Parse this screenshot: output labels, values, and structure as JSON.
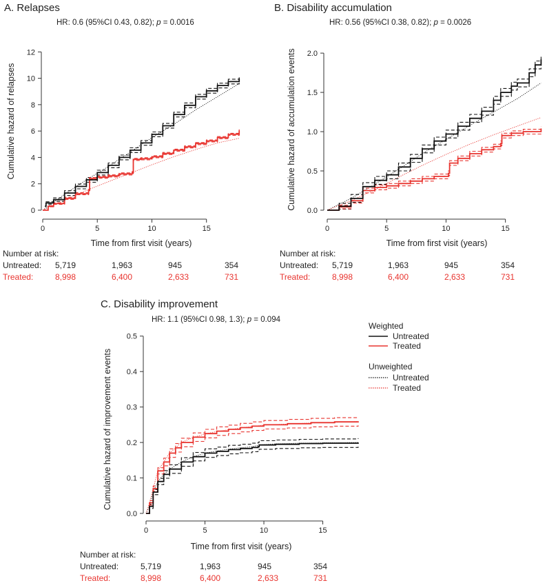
{
  "colors": {
    "untreated": "#111111",
    "treated": "#e8332e"
  },
  "risk_table": {
    "heading": "Number at risk:",
    "untreated_label": "Untreated:",
    "treated_label": "Treated:",
    "times": [
      0,
      5,
      10,
      15
    ],
    "untreated": [
      "5,719",
      "1,963",
      "945",
      "354"
    ],
    "treated": [
      "8,998",
      "6,400",
      "2,633",
      "731"
    ]
  },
  "legend": {
    "weighted_heading": "Weighted",
    "unweighted_heading": "Unweighted",
    "untreated": "Untreated",
    "treated": "Treated"
  },
  "chart_data": [
    {
      "id": "A",
      "type": "line",
      "title": "A. Relapses",
      "hr_prefix": "HR: 0.6 (95%CI 0.43, 0.82); ",
      "hr_p_label": "p",
      "hr_p_value": " = 0.0016",
      "xlabel": "Time from first visit (years)",
      "ylabel": "Cumulative hazard of relapses",
      "xlim": [
        0,
        18.3
      ],
      "ylim": [
        0,
        12.8
      ],
      "xticks": [
        0,
        5,
        10,
        15
      ],
      "yticks": [
        0,
        2,
        4,
        6,
        8,
        10,
        12
      ],
      "ytick_labels": [
        "0",
        "2",
        "4",
        "6",
        "8",
        "10",
        "12"
      ],
      "weighted_untreated": [
        [
          0.2,
          0.3
        ],
        [
          0.3,
          0.55
        ],
        [
          1,
          0.8
        ],
        [
          2,
          1.3
        ],
        [
          3,
          1.8
        ],
        [
          4,
          2.3
        ],
        [
          5,
          2.85
        ],
        [
          6,
          3.4
        ],
        [
          7,
          4.0
        ],
        [
          8,
          4.55
        ],
        [
          9,
          5.1
        ],
        [
          10,
          5.75
        ],
        [
          11,
          6.4
        ],
        [
          12,
          7.25
        ],
        [
          13,
          7.95
        ],
        [
          14,
          8.6
        ],
        [
          15,
          9.05
        ],
        [
          16,
          9.45
        ],
        [
          17,
          9.75
        ],
        [
          18,
          10.0
        ]
      ],
      "weighted_untreated_ci_band": 0.18,
      "weighted_treated": [
        [
          0,
          0
        ],
        [
          0.5,
          0.3
        ],
        [
          1,
          0.5
        ],
        [
          2,
          0.9
        ],
        [
          3,
          1.25
        ],
        [
          4.2,
          1.5
        ],
        [
          4.3,
          2.4
        ],
        [
          5,
          2.5
        ],
        [
          6,
          2.6
        ],
        [
          7,
          2.75
        ],
        [
          8.2,
          2.85
        ],
        [
          8.3,
          3.85
        ],
        [
          9,
          3.9
        ],
        [
          10,
          4.05
        ],
        [
          11,
          4.3
        ],
        [
          12,
          4.55
        ],
        [
          13,
          4.8
        ],
        [
          14,
          5.05
        ],
        [
          15,
          5.25
        ],
        [
          16,
          5.5
        ],
        [
          17,
          5.75
        ],
        [
          18,
          6.05
        ]
      ],
      "weighted_treated_ci_band": 0.08,
      "unweighted_untreated": [
        [
          0,
          0
        ],
        [
          2,
          1.2
        ],
        [
          4,
          2.3
        ],
        [
          6,
          3.3
        ],
        [
          8,
          4.4
        ],
        [
          10,
          5.5
        ],
        [
          12,
          6.5
        ],
        [
          14,
          7.6
        ],
        [
          16,
          8.6
        ],
        [
          18,
          9.6
        ]
      ],
      "unweighted_treated": [
        [
          0,
          0
        ],
        [
          2,
          0.75
        ],
        [
          4,
          1.5
        ],
        [
          6,
          2.15
        ],
        [
          8,
          2.8
        ],
        [
          10,
          3.45
        ],
        [
          12,
          4.05
        ],
        [
          14,
          4.6
        ],
        [
          16,
          5.1
        ],
        [
          18,
          5.45
        ]
      ]
    },
    {
      "id": "B",
      "type": "line",
      "title": "B. Disability accumulation",
      "hr_prefix": "HR: 0.56 (95%CI 0.38, 0.82); ",
      "hr_p_label": "p",
      "hr_p_value": " = 0.0026",
      "xlabel": "Time from first visit (years)",
      "ylabel": "Cumulative hazard of accumulation events",
      "xlim": [
        0,
        18.5
      ],
      "ylim": [
        0,
        2.15
      ],
      "xticks": [
        0,
        5,
        10,
        15
      ],
      "yticks": [
        0,
        0.5,
        1.0,
        1.5,
        2.0
      ],
      "ytick_labels": [
        "0.0",
        "0.5",
        "1.0",
        "1.5",
        "2.0"
      ],
      "weighted_untreated": [
        [
          0,
          0
        ],
        [
          1,
          0.05
        ],
        [
          2,
          0.15
        ],
        [
          3,
          0.3
        ],
        [
          4,
          0.38
        ],
        [
          5,
          0.45
        ],
        [
          6,
          0.55
        ],
        [
          7,
          0.66
        ],
        [
          8,
          0.78
        ],
        [
          9,
          0.88
        ],
        [
          10,
          0.97
        ],
        [
          11,
          1.07
        ],
        [
          12,
          1.17
        ],
        [
          13,
          1.26
        ],
        [
          14,
          1.4
        ],
        [
          14.6,
          1.5
        ],
        [
          15.5,
          1.58
        ],
        [
          16,
          1.62
        ],
        [
          17,
          1.75
        ],
        [
          17.5,
          1.85
        ],
        [
          18,
          1.92
        ]
      ],
      "weighted_untreated_ci_band": 0.05,
      "weighted_treated": [
        [
          0,
          0
        ],
        [
          1,
          0.04
        ],
        [
          2,
          0.12
        ],
        [
          3,
          0.25
        ],
        [
          4,
          0.29
        ],
        [
          5,
          0.31
        ],
        [
          6,
          0.34
        ],
        [
          7,
          0.37
        ],
        [
          8,
          0.4
        ],
        [
          9,
          0.43
        ],
        [
          10.2,
          0.47
        ],
        [
          10.3,
          0.6
        ],
        [
          11,
          0.66
        ],
        [
          12,
          0.72
        ],
        [
          13,
          0.77
        ],
        [
          14,
          0.81
        ],
        [
          14.6,
          0.85
        ],
        [
          14.7,
          0.95
        ],
        [
          15.5,
          0.98
        ],
        [
          16.5,
          1.0
        ],
        [
          18,
          1.04
        ]
      ],
      "weighted_treated_ci_band": 0.03,
      "unweighted_untreated": [
        [
          0,
          0
        ],
        [
          2,
          0.15
        ],
        [
          4,
          0.33
        ],
        [
          6,
          0.52
        ],
        [
          8,
          0.72
        ],
        [
          10,
          0.9
        ],
        [
          12,
          1.08
        ],
        [
          14,
          1.25
        ],
        [
          16,
          1.42
        ],
        [
          18,
          1.62
        ]
      ],
      "unweighted_treated": [
        [
          0,
          0
        ],
        [
          2,
          0.12
        ],
        [
          4,
          0.26
        ],
        [
          6,
          0.42
        ],
        [
          8,
          0.57
        ],
        [
          10,
          0.71
        ],
        [
          12,
          0.84
        ],
        [
          14,
          0.96
        ],
        [
          16,
          1.07
        ],
        [
          18,
          1.18
        ]
      ]
    },
    {
      "id": "C",
      "type": "line",
      "title": "C. Disability improvement",
      "hr_prefix": "HR: 1.1 (95%CI 0.98, 1.3); ",
      "hr_p_label": "p",
      "hr_p_value": " = 0.094",
      "xlabel": "Time from first visit (years)",
      "ylabel": "Cumulative hazard of improvement  events",
      "xlim": [
        0,
        18.3
      ],
      "ylim": [
        0,
        0.515
      ],
      "xticks": [
        0,
        5,
        10,
        15
      ],
      "yticks": [
        0,
        0.1,
        0.2,
        0.3,
        0.4,
        0.5
      ],
      "ytick_labels": [
        "0.0",
        "0.1",
        "0.2",
        "0.3",
        "0.4",
        "0.5"
      ],
      "weighted_untreated": [
        [
          0,
          0
        ],
        [
          0.3,
          0.02
        ],
        [
          0.6,
          0.06
        ],
        [
          1,
          0.09
        ],
        [
          1.5,
          0.11
        ],
        [
          2,
          0.125
        ],
        [
          3,
          0.145
        ],
        [
          4,
          0.16
        ],
        [
          5,
          0.17
        ],
        [
          6,
          0.175
        ],
        [
          7,
          0.18
        ],
        [
          8,
          0.183
        ],
        [
          9,
          0.186
        ],
        [
          9.5,
          0.188
        ],
        [
          9.6,
          0.193
        ],
        [
          11,
          0.195
        ],
        [
          13,
          0.197
        ],
        [
          15,
          0.198
        ],
        [
          18,
          0.2
        ]
      ],
      "weighted_untreated_ci_band": 0.012,
      "weighted_treated": [
        [
          0,
          0
        ],
        [
          0.3,
          0.03
        ],
        [
          0.6,
          0.07
        ],
        [
          1,
          0.12
        ],
        [
          1.5,
          0.145
        ],
        [
          2,
          0.17
        ],
        [
          2.5,
          0.185
        ],
        [
          3,
          0.2
        ],
        [
          4,
          0.215
        ],
        [
          5,
          0.225
        ],
        [
          6,
          0.232
        ],
        [
          7,
          0.237
        ],
        [
          8,
          0.242
        ],
        [
          9,
          0.246
        ],
        [
          10,
          0.25
        ],
        [
          12,
          0.253
        ],
        [
          14,
          0.256
        ],
        [
          16,
          0.258
        ],
        [
          18,
          0.26
        ]
      ],
      "weighted_treated_ci_band": 0.012,
      "unweighted_untreated": [
        [
          0,
          0
        ],
        [
          0.3,
          0.02
        ],
        [
          0.6,
          0.06
        ],
        [
          1,
          0.09
        ],
        [
          1.5,
          0.11
        ],
        [
          2,
          0.125
        ],
        [
          3,
          0.145
        ],
        [
          4,
          0.16
        ],
        [
          5,
          0.17
        ],
        [
          6,
          0.176
        ],
        [
          7,
          0.181
        ],
        [
          8,
          0.185
        ],
        [
          9,
          0.188
        ],
        [
          9.6,
          0.193
        ],
        [
          11,
          0.196
        ],
        [
          13,
          0.198
        ],
        [
          15,
          0.199
        ],
        [
          18,
          0.2
        ]
      ],
      "unweighted_treated": [
        [
          0,
          0
        ],
        [
          0.3,
          0.03
        ],
        [
          0.6,
          0.07
        ],
        [
          1,
          0.12
        ],
        [
          1.5,
          0.145
        ],
        [
          2,
          0.17
        ],
        [
          2.5,
          0.185
        ],
        [
          3,
          0.2
        ],
        [
          4,
          0.214
        ],
        [
          5,
          0.224
        ],
        [
          6,
          0.231
        ],
        [
          7,
          0.236
        ],
        [
          8,
          0.241
        ],
        [
          9,
          0.245
        ],
        [
          10,
          0.249
        ],
        [
          12,
          0.252
        ],
        [
          14,
          0.255
        ],
        [
          16,
          0.257
        ],
        [
          18,
          0.259
        ]
      ]
    }
  ]
}
